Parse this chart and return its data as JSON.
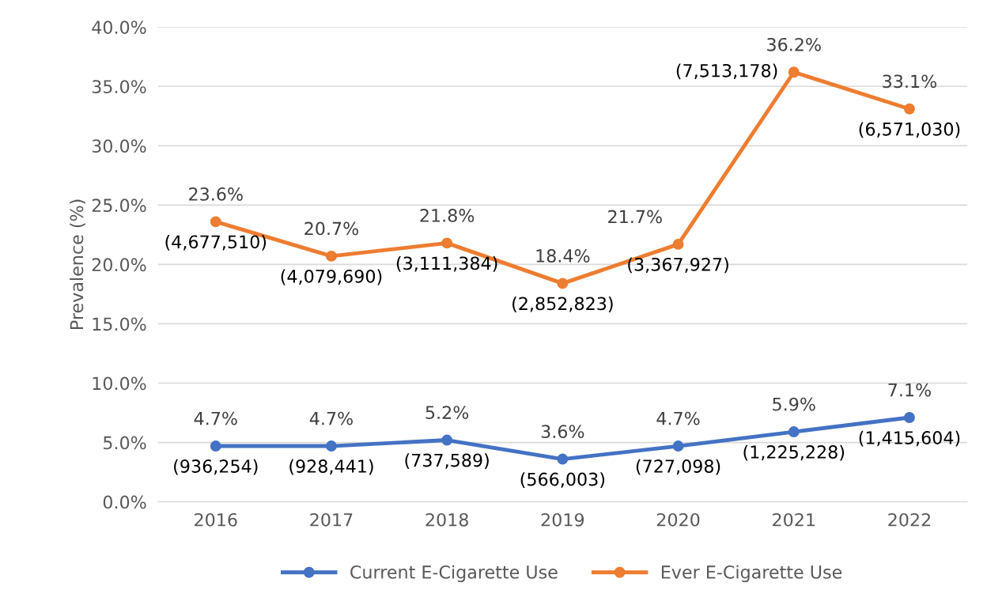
{
  "chart_data": {
    "type": "line",
    "ylabel": "Prevalence (%)",
    "categories": [
      "2016",
      "2017",
      "2018",
      "2019",
      "2020",
      "2021",
      "2022"
    ],
    "series": [
      {
        "name": "Current E-Cigarette Use",
        "color": "#4472c4",
        "values": [
          4.7,
          4.7,
          5.2,
          3.6,
          4.7,
          5.9,
          7.1
        ],
        "value_labels": [
          "4.7%",
          "4.7%",
          "5.2%",
          "3.6%",
          "4.7%",
          "5.9%",
          "7.1%"
        ]
      },
      {
        "name": "Ever E-Cigarette Use",
        "color": "#ed7d31",
        "values": [
          23.6,
          20.7,
          21.8,
          18.4,
          21.7,
          36.2,
          33.1
        ],
        "value_labels": [
          "23.6%",
          "20.7%",
          "21.8%",
          "18.4%",
          "21.7%",
          "36.2%",
          "33.1%"
        ]
      }
    ],
    "ylim": [
      0,
      40
    ],
    "yticks": [
      {
        "value": 0,
        "label": "0.0%"
      },
      {
        "value": 5,
        "label": "5.0%"
      },
      {
        "value": 10,
        "label": "10.0%"
      },
      {
        "value": 15,
        "label": "15.0%"
      },
      {
        "value": 20,
        "label": "20.0%"
      },
      {
        "value": 25,
        "label": "25.0%"
      },
      {
        "value": 30,
        "label": "30.0%"
      },
      {
        "value": 35,
        "label": "35.0%"
      },
      {
        "value": 40,
        "label": "40.0%"
      }
    ],
    "annotations": [
      {
        "text": "(936,254)",
        "x": "2016",
        "y": 4.7
      },
      {
        "text": "(928,441)",
        "x": "2017",
        "y": 4.7
      },
      {
        "text": "(737,589)",
        "x": "2018",
        "y": 5.2
      },
      {
        "text": "(566,003)",
        "x": "2019",
        "y": 3.6
      },
      {
        "text": "(727,098)",
        "x": "2020",
        "y": 4.7
      },
      {
        "text": "(1,225,228)",
        "x": "2021",
        "y": 5.9
      },
      {
        "text": "(1,415,604)",
        "x": "2022",
        "y": 7.1
      },
      {
        "text": "(4,677,510)",
        "x": "2016",
        "y": 23.6
      },
      {
        "text": "(4,079,690)",
        "x": "2017",
        "y": 20.7
      },
      {
        "text": "(3,111,384)",
        "x": "2018",
        "y": 21.8
      },
      {
        "text": "(2,852,823)",
        "x": "2019",
        "y": 18.4
      },
      {
        "text": "(3,367,927)",
        "x": "2020",
        "y": 21.7
      },
      {
        "text": "(7,513,178)",
        "x": "2021",
        "y": 36.2
      },
      {
        "text": "(6,571,030)",
        "x": "2022",
        "y": 33.1
      }
    ],
    "grid": "y",
    "legend": "bottom",
    "marker": "circle",
    "line_style": "solid"
  }
}
